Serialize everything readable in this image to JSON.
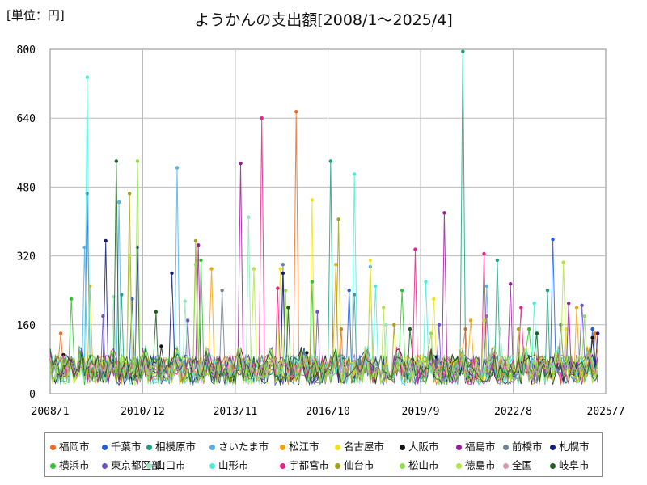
{
  "header": {
    "unit_label": "[単位：円]",
    "title": "ようかんの支出額[2008/1～2025/4]"
  },
  "chart_data": {
    "type": "line",
    "title": "ようかんの支出額[2008/1～2025/4]",
    "ylabel": "[単位：円]",
    "ylim": [
      0,
      800
    ],
    "xlim": [
      "2008/1",
      "2025/7"
    ],
    "y_ticks": [
      "0",
      "160",
      "320",
      "480",
      "640",
      "800"
    ],
    "x_ticks": [
      "2008/1",
      "2010/12",
      "2013/11",
      "2016/10",
      "2019/9",
      "2022/8",
      "2025/7"
    ],
    "grid": true,
    "legend_position": "bottom",
    "series": [
      {
        "name": "福岡市",
        "color": "#f26b1d",
        "peaks": [
          [
            "2008/5",
            140
          ],
          [
            "2015/10",
            655
          ],
          [
            "2017/3",
            150
          ],
          [
            "2021/2",
            150
          ],
          [
            "2025/3",
            140
          ]
        ]
      },
      {
        "name": "千葉市",
        "color": "#1f5fd6",
        "peaks": [
          [
            "2009/3",
            465
          ],
          [
            "2010/8",
            220
          ],
          [
            "2017/6",
            240
          ],
          [
            "2023/11",
            358
          ],
          [
            "2025/2",
            150
          ]
        ]
      },
      {
        "name": "相模原市",
        "color": "#16a37e",
        "peaks": [
          [
            "2010/4",
            230
          ],
          [
            "2016/11",
            540
          ],
          [
            "2021/1",
            795
          ],
          [
            "2022/2",
            310
          ],
          [
            "2023/9",
            240
          ]
        ]
      },
      {
        "name": "さいたま市",
        "color": "#4fb3e8",
        "peaks": [
          [
            "2009/2",
            340
          ],
          [
            "2010/3",
            445
          ],
          [
            "2012/1",
            525
          ],
          [
            "2018/2",
            295
          ],
          [
            "2021/10",
            250
          ]
        ]
      },
      {
        "name": "松江市",
        "color": "#f5a20a",
        "peaks": [
          [
            "2009/4",
            250
          ],
          [
            "2013/2",
            290
          ],
          [
            "2017/1",
            300
          ],
          [
            "2021/4",
            170
          ],
          [
            "2024/8",
            200
          ]
        ]
      },
      {
        "name": "名古屋市",
        "color": "#f0e21a",
        "peaks": [
          [
            "2015/4",
            290
          ],
          [
            "2016/4",
            450
          ],
          [
            "2018/2",
            310
          ],
          [
            "2020/2",
            220
          ],
          [
            "2024/4",
            150
          ]
        ]
      },
      {
        "name": "大阪市",
        "color": "#111111",
        "peaks": [
          [
            "2008/6",
            90
          ],
          [
            "2011/7",
            110
          ],
          [
            "2016/2",
            95
          ],
          [
            "2020/3",
            85
          ],
          [
            "2025/2",
            130
          ]
        ]
      },
      {
        "name": "福島市",
        "color": "#9b1c9b",
        "peaks": [
          [
            "2014/1",
            535
          ],
          [
            "2012/9",
            345
          ],
          [
            "2020/6",
            420
          ],
          [
            "2022/7",
            255
          ],
          [
            "2024/5",
            210
          ]
        ]
      },
      {
        "name": "前橋市",
        "color": "#6f8395",
        "peaks": [
          [
            "2013/6",
            240
          ],
          [
            "2015/5",
            300
          ],
          [
            "2017/8",
            230
          ],
          [
            "2021/10",
            180
          ],
          [
            "2024/2",
            160
          ]
        ]
      },
      {
        "name": "札幌市",
        "color": "#141a80",
        "peaks": [
          [
            "2009/10",
            355
          ],
          [
            "2010/10",
            340
          ],
          [
            "2011/11",
            280
          ],
          [
            "2015/5",
            280
          ],
          [
            "2025/4",
            140
          ]
        ]
      },
      {
        "name": "横浜市",
        "color": "#2ec42e",
        "peaks": [
          [
            "2008/9",
            220
          ],
          [
            "2012/10",
            310
          ],
          [
            "2016/4",
            260
          ],
          [
            "2019/2",
            240
          ],
          [
            "2023/2",
            150
          ]
        ]
      },
      {
        "name": "東京都区部",
        "color": "#6a4fcf",
        "peaks": [
          [
            "2009/9",
            180
          ],
          [
            "2012/5",
            170
          ],
          [
            "2016/6",
            190
          ],
          [
            "2020/4",
            160
          ],
          [
            "2024/10",
            205
          ]
        ]
      },
      {
        "name": "山口市",
        "color": "#97e6bf",
        "peaks": [
          [
            "2010/1",
            225
          ],
          [
            "2012/4",
            215
          ],
          [
            "2014/4",
            410
          ],
          [
            "2018/8",
            160
          ],
          [
            "2022/3",
            150
          ]
        ]
      },
      {
        "name": "山形市",
        "color": "#3ff2d9",
        "peaks": [
          [
            "2009/3",
            735
          ],
          [
            "2017/8",
            510
          ],
          [
            "2018/4",
            250
          ],
          [
            "2019/11",
            260
          ],
          [
            "2023/4",
            210
          ]
        ]
      },
      {
        "name": "宇都宮市",
        "color": "#e8228a",
        "peaks": [
          [
            "2014/9",
            640
          ],
          [
            "2015/3",
            245
          ],
          [
            "2019/7",
            335
          ],
          [
            "2021/9",
            325
          ],
          [
            "2022/11",
            200
          ]
        ]
      },
      {
        "name": "仙台市",
        "color": "#a3a315",
        "peaks": [
          [
            "2010/7",
            465
          ],
          [
            "2012/8",
            355
          ],
          [
            "2017/2",
            405
          ],
          [
            "2018/11",
            160
          ],
          [
            "2022/10",
            150
          ]
        ]
      },
      {
        "name": "松山市",
        "color": "#8fe04a",
        "peaks": [
          [
            "2010/10",
            540
          ],
          [
            "2012/8",
            300
          ],
          [
            "2015/6",
            240
          ],
          [
            "2020/1",
            140
          ],
          [
            "2024/11",
            180
          ]
        ]
      },
      {
        "name": "徳島市",
        "color": "#b3e63f",
        "peaks": [
          [
            "2010/7",
            320
          ],
          [
            "2014/6",
            290
          ],
          [
            "2018/7",
            200
          ],
          [
            "2021/9",
            170
          ],
          [
            "2024/3",
            305
          ]
        ]
      },
      {
        "name": "全国",
        "color": "#d699b0",
        "peaks": [
          [
            "2008/1",
            80
          ],
          [
            "2012/1",
            80
          ],
          [
            "2016/1",
            80
          ],
          [
            "2020/1",
            75
          ],
          [
            "2025/1",
            90
          ]
        ]
      },
      {
        "name": "岐阜市",
        "color": "#1f5e1f",
        "peaks": [
          [
            "2010/2",
            540
          ],
          [
            "2011/5",
            190
          ],
          [
            "2015/7",
            200
          ],
          [
            "2019/5",
            150
          ],
          [
            "2023/5",
            140
          ]
        ]
      }
    ]
  }
}
